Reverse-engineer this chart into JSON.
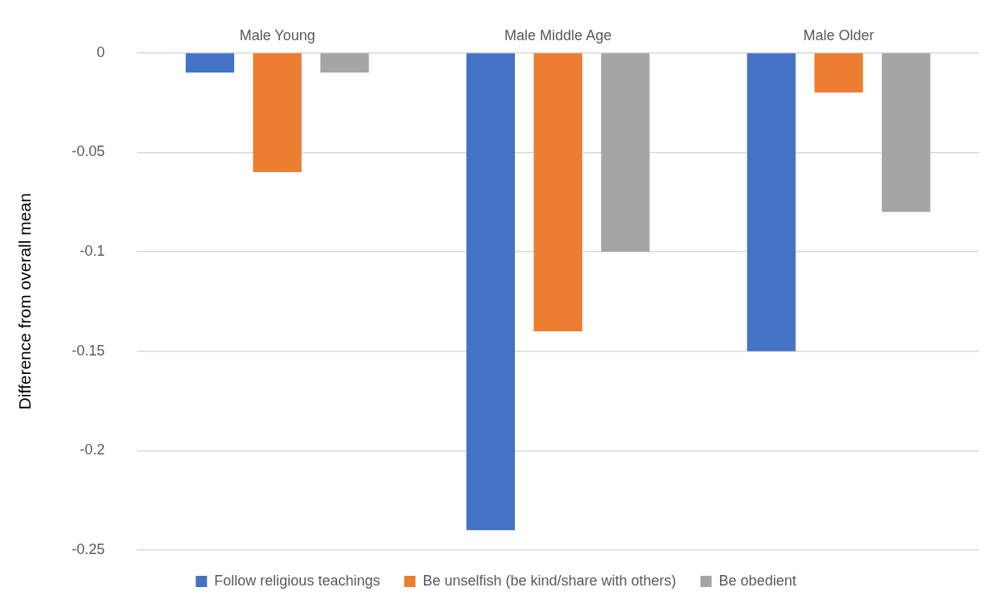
{
  "chart_data": {
    "type": "bar",
    "ylabel": "Difference from overall mean",
    "categories": [
      "Male Young",
      "Male Middle Age",
      "Male Older"
    ],
    "series": [
      {
        "name": "Follow religious teachings",
        "color": "#4472c4",
        "values": [
          -0.01,
          -0.24,
          -0.15
        ]
      },
      {
        "name": "Be unselfish (be kind/share with others)",
        "color": "#ed7d31",
        "values": [
          -0.06,
          -0.14,
          -0.02
        ]
      },
      {
        "name": "Be obedient",
        "color": "#a5a5a5",
        "values": [
          -0.01,
          -0.1,
          -0.08
        ]
      }
    ],
    "ylim": [
      -0.25,
      0
    ],
    "yticks": [
      0,
      -0.05,
      -0.1,
      -0.15,
      -0.2,
      -0.25
    ],
    "grid": "y",
    "legend": "bottom"
  }
}
